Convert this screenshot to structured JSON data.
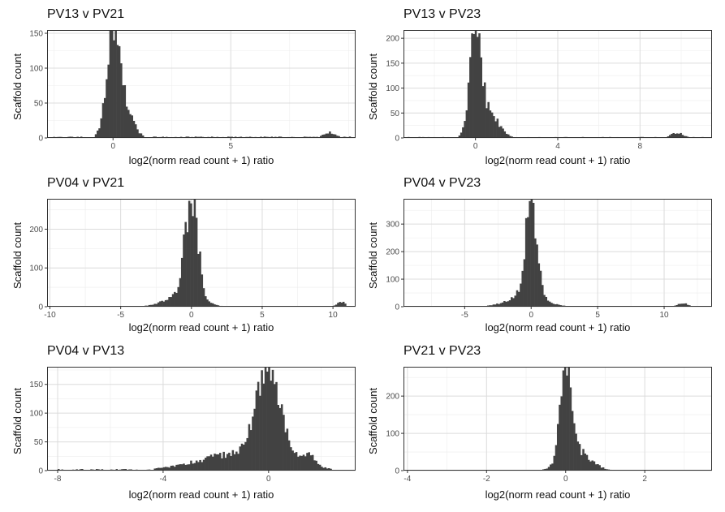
{
  "chart_data": [
    {
      "type": "bar",
      "title": "PV13 v PV21",
      "xlabel": "log2(norm read count + 1) ratio",
      "ylabel": "Scaffold count",
      "xlim": [
        -2.8,
        10.3
      ],
      "ylim": [
        0,
        150
      ],
      "xticks": [
        0,
        5
      ],
      "yticks": [
        0,
        50,
        100,
        150
      ],
      "grid": true,
      "peaks": [
        {
          "center": 0.0,
          "height": 148,
          "width": 0.28
        },
        {
          "center": 0.5,
          "height": 38,
          "width": 0.35
        },
        {
          "center": 9.2,
          "height": 8,
          "width": 0.25
        }
      ],
      "tail": {
        "from": -2.7,
        "to": 10.1,
        "level": 2
      }
    },
    {
      "type": "bar",
      "title": "PV13 v PV23",
      "xlabel": "log2(norm read count + 1) ratio",
      "ylabel": "Scaffold count",
      "xlim": [
        -3.5,
        11.5
      ],
      "ylim": [
        0,
        210
      ],
      "xticks": [
        0,
        4,
        8
      ],
      "yticks": [
        0,
        50,
        100,
        150,
        200
      ],
      "grid": true,
      "peaks": [
        {
          "center": 0.0,
          "height": 205,
          "width": 0.28
        },
        {
          "center": 0.7,
          "height": 45,
          "width": 0.45
        },
        {
          "center": 9.8,
          "height": 10,
          "width": 0.3
        }
      ],
      "tail": {
        "from": -3.3,
        "to": 11.2,
        "level": 2
      }
    },
    {
      "type": "bar",
      "title": "PV04 v PV21",
      "xlabel": "log2(norm read count + 1) ratio",
      "ylabel": "Scaffold count",
      "xlim": [
        -10.2,
        11.6
      ],
      "ylim": [
        0,
        270
      ],
      "xticks": [
        -10,
        -5,
        0,
        5,
        10
      ],
      "yticks": [
        0,
        100,
        200
      ],
      "grid": true,
      "peaks": [
        {
          "center": 0.0,
          "height": 255,
          "width": 0.45
        },
        {
          "center": -0.6,
          "height": 30,
          "width": 1.2
        },
        {
          "center": 10.6,
          "height": 12,
          "width": 0.3
        }
      ],
      "tail": {
        "from": -9.2,
        "to": 10.9,
        "level": 2
      }
    },
    {
      "type": "bar",
      "title": "PV04 v PV23",
      "xlabel": "log2(norm read count + 1) ratio",
      "ylabel": "Scaffold count",
      "xlim": [
        -9.6,
        13.6
      ],
      "ylim": [
        0,
        380
      ],
      "xticks": [
        -5,
        0,
        5,
        10
      ],
      "yticks": [
        0,
        100,
        200,
        300
      ],
      "grid": true,
      "peaks": [
        {
          "center": 0.0,
          "height": 360,
          "width": 0.42
        },
        {
          "center": -0.4,
          "height": 40,
          "width": 1.3
        },
        {
          "center": 11.4,
          "height": 12,
          "width": 0.4
        }
      ],
      "tail": {
        "from": -8.5,
        "to": 12.5,
        "level": 2
      }
    },
    {
      "type": "bar",
      "title": "PV04 v PV13",
      "xlabel": "log2(norm read count + 1) ratio",
      "ylabel": "Scaffold count",
      "xlim": [
        -8.4,
        3.3
      ],
      "ylim": [
        0,
        175
      ],
      "xticks": [
        -8,
        -4,
        0
      ],
      "yticks": [
        0,
        50,
        100,
        150
      ],
      "grid": true,
      "peaks": [
        {
          "center": 0.0,
          "height": 165,
          "width": 0.45
        },
        {
          "center": -1.0,
          "height": 30,
          "width": 1.6
        },
        {
          "center": 1.5,
          "height": 22,
          "width": 0.25
        }
      ],
      "tail": {
        "from": -8.0,
        "to": 2.4,
        "level": 3
      }
    },
    {
      "type": "bar",
      "title": "PV21 v PV23",
      "xlabel": "log2(norm read count + 1) ratio",
      "ylabel": "Scaffold count",
      "xlim": [
        -4.1,
        3.7
      ],
      "ylim": [
        0,
        270
      ],
      "xticks": [
        -4,
        -2,
        0,
        2
      ],
      "yticks": [
        0,
        100,
        200
      ],
      "grid": true,
      "peaks": [
        {
          "center": 0.0,
          "height": 260,
          "width": 0.13
        },
        {
          "center": 0.25,
          "height": 55,
          "width": 0.35
        }
      ],
      "tail": {
        "from": -3.8,
        "to": 3.3,
        "level": 2
      }
    }
  ]
}
